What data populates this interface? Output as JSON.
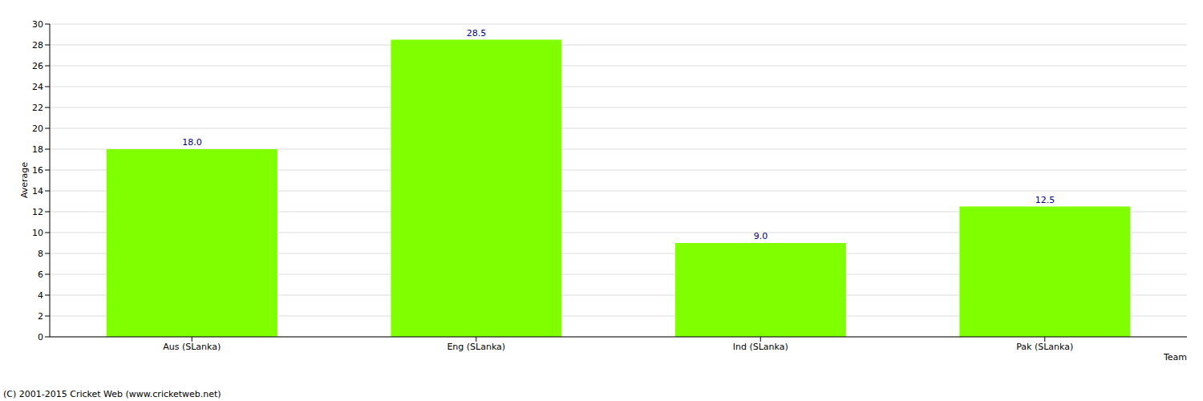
{
  "chart_data": {
    "type": "bar",
    "categories": [
      "Aus (SLanka)",
      "Eng (SLanka)",
      "Ind (SLanka)",
      "Pak (SLanka)"
    ],
    "values": [
      18.0,
      28.5,
      9.0,
      12.5
    ],
    "value_labels": [
      "18.0",
      "28.5",
      "9.0",
      "12.5"
    ],
    "data_labels": true,
    "color": "#7fff00",
    "x_label": "Team",
    "y_label": "Average",
    "annotation": "(C) 2001-2015 Cricket Web (www.cricketweb.net)",
    "ylim": [
      0,
      30
    ],
    "yticks": [
      0,
      2,
      4,
      6,
      8,
      10,
      12,
      14,
      16,
      18,
      20,
      22,
      24,
      26,
      28,
      30
    ],
    "grid": true
  }
}
